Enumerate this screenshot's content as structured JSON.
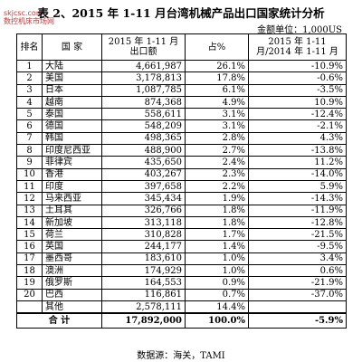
{
  "header": {
    "title": "表 2、2015 年 1-11 月台湾机械产品出口国家统计分析",
    "watermark_site": "skjcsc.com",
    "watermark_name": "数控机床市场网",
    "unit": "金额单位：1,000US"
  },
  "table": {
    "columns": [
      "排名",
      "国 家",
      "2015 年 1-11 月出口额",
      "占%",
      "2015 年 1-11 月/2014 年 1-11 月"
    ],
    "rows": [
      [
        "1",
        "大陆",
        "4,661,987",
        "26.1%",
        "-10.9%"
      ],
      [
        "2",
        "美国",
        "3,178,813",
        "17.8%",
        "-0.6%"
      ],
      [
        "3",
        "日本",
        "1,087,785",
        "6.1%",
        "-3.5%"
      ],
      [
        "4",
        "越南",
        "874,368",
        "4.9%",
        "10.9%"
      ],
      [
        "5",
        "泰国",
        "558,611",
        "3.1%",
        "-12.4%"
      ],
      [
        "6",
        "德国",
        "548,209",
        "3.1%",
        "-2.1%"
      ],
      [
        "7",
        "韩国",
        "498,365",
        "2.8%",
        "4.3%"
      ],
      [
        "8",
        "印度尼西亚",
        "488,900",
        "2.7%",
        "-13.8%"
      ],
      [
        "9",
        "菲律宾",
        "435,650",
        "2.4%",
        "11.2%"
      ],
      [
        "10",
        "香港",
        "403,267",
        "2.3%",
        "-14.0%"
      ],
      [
        "11",
        "印度",
        "397,658",
        "2.2%",
        "5.9%"
      ],
      [
        "12",
        "马来西亚",
        "345,434",
        "1.9%",
        "-14.3%"
      ],
      [
        "13",
        "土耳其",
        "326,766",
        "1.8%",
        "-11.9%"
      ],
      [
        "14",
        "新加坡",
        "313,118",
        "1.8%",
        "-12.8%"
      ],
      [
        "15",
        "荷兰",
        "310,828",
        "1.7%",
        "-21.5%"
      ],
      [
        "16",
        "英国",
        "244,177",
        "1.4%",
        "-9.5%"
      ],
      [
        "17",
        "墨西哥",
        "183,610",
        "1.0%",
        "3.4%"
      ],
      [
        "18",
        "澳洲",
        "174,929",
        "1.0%",
        "0.6%"
      ],
      [
        "19",
        "俄罗斯",
        "164,553",
        "0.9%",
        "-21.9%"
      ],
      [
        "20",
        "巴西",
        "116,861",
        "0.7%",
        "-37.0%"
      ]
    ],
    "other": [
      "其他",
      "2,578,111",
      "14.4%"
    ],
    "total": [
      "合 计",
      "17,892,000",
      "100.0%",
      "-5.9%"
    ]
  },
  "footer": {
    "source": "数据源：海关，TAMI"
  }
}
